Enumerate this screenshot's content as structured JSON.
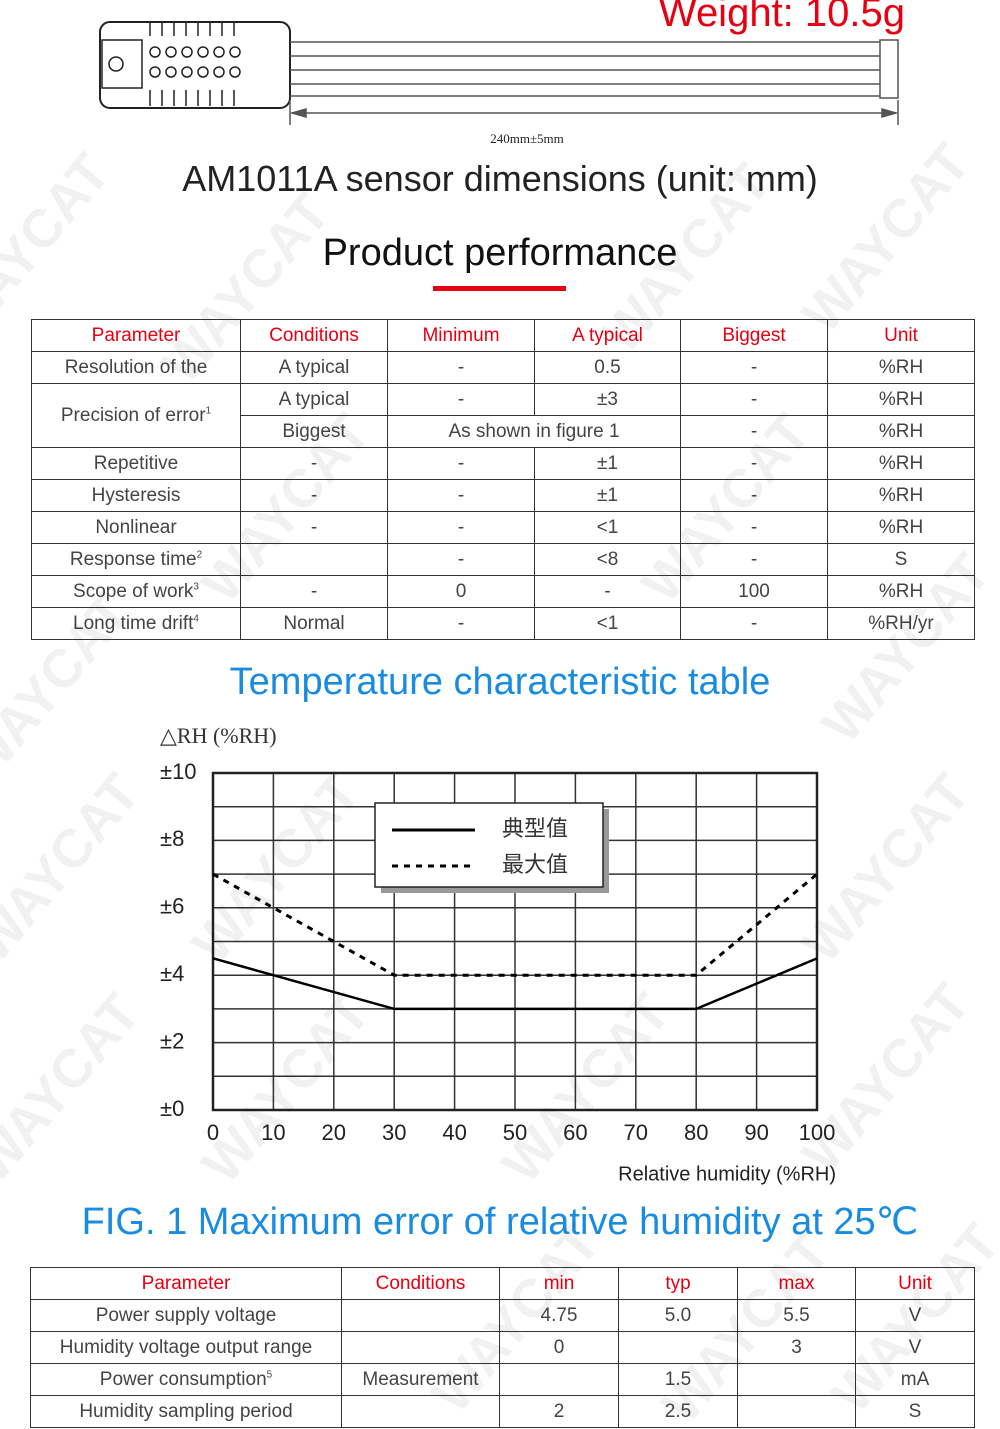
{
  "header": {
    "weight": "Weight: 10.5g",
    "cable_length": "240mm±5mm",
    "dimensions_caption": "AM1011A sensor dimensions (unit: mm)"
  },
  "watermark": "WAYCAT",
  "performance": {
    "title": "Product performance",
    "table": {
      "header": [
        "Parameter",
        "Conditions",
        "Minimum",
        "A typical",
        "Biggest",
        "Unit"
      ],
      "rows": [
        [
          "Resolution of the",
          "A typical",
          "-",
          "0.5",
          "-",
          "%RH"
        ],
        [
          {
            "text": "Precision of error",
            "note": "1"
          },
          "A typical",
          "-",
          "±3",
          "-",
          "%RH"
        ],
        [
          "Biggest",
          "As shown in figure 1",
          "-",
          "%RH"
        ],
        [
          "Repetitive",
          "-",
          "-",
          "±1",
          "-",
          "%RH"
        ],
        [
          "Hysteresis",
          "-",
          "-",
          "±1",
          "-",
          "%RH"
        ],
        [
          "Nonlinear",
          "-",
          "-",
          "<1",
          "-",
          "%RH"
        ],
        [
          {
            "text": "Response time",
            "note": "2"
          },
          null,
          "-",
          "<8",
          "-",
          "S"
        ],
        [
          {
            "text": "Scope of work",
            "note": "3"
          },
          "-",
          "0",
          "-",
          "100",
          "%RH"
        ],
        [
          {
            "text": "Long time drift",
            "note": "4"
          },
          "Normal",
          "-",
          "<1",
          "-",
          "%RH/yr"
        ]
      ]
    }
  },
  "chart_title": "Temperature characteristic table",
  "chart_data": {
    "type": "line",
    "y_label": "△RH (%RH)",
    "x_label": "Relative humidity (%RH)",
    "xlim": [
      0,
      100
    ],
    "xticks": [
      0,
      10,
      20,
      30,
      40,
      50,
      60,
      70,
      80,
      90,
      100
    ],
    "ylim": [
      0,
      10
    ],
    "yticks": [
      {
        "value": 0,
        "label": "±0"
      },
      {
        "value": 2,
        "label": "±2"
      },
      {
        "value": 4,
        "label": "±4"
      },
      {
        "value": 6,
        "label": "±6"
      },
      {
        "value": 8,
        "label": "±8"
      },
      {
        "value": 10,
        "label": "±10"
      }
    ],
    "ygrid": [
      1,
      3,
      5,
      7,
      9
    ],
    "grid": true,
    "x": [
      0,
      10,
      30,
      80,
      100
    ],
    "series": [
      {
        "name": "典型值",
        "color": "#000000",
        "style": "solid",
        "values": [
          4.5,
          4,
          3,
          3,
          4.5
        ]
      },
      {
        "name": "最大值",
        "color": "#000000",
        "style": "dashed",
        "values": [
          7,
          6,
          4,
          4,
          7
        ]
      }
    ]
  },
  "fig_caption": "FIG. 1 Maximum error of relative humidity at 25℃",
  "electrical": {
    "table": {
      "header": [
        "Parameter",
        "Conditions",
        "min",
        "typ",
        "max",
        "Unit"
      ],
      "rows": [
        [
          "Power supply voltage",
          null,
          "4.75",
          "5.0",
          "5.5",
          "V"
        ],
        [
          "Humidity voltage output range",
          null,
          "0",
          null,
          "3",
          "V"
        ],
        [
          {
            "text": "Power consumption",
            "note": "5"
          },
          "Measurement",
          null,
          "1.5",
          null,
          "mA"
        ],
        [
          "Humidity sampling period",
          null,
          "2",
          "2.5",
          null,
          "S"
        ]
      ]
    }
  }
}
